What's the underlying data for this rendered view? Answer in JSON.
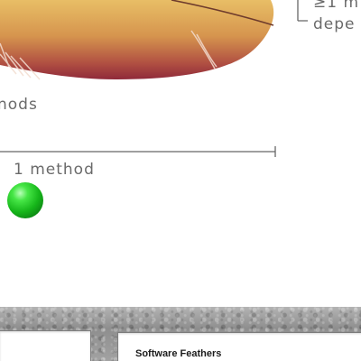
{
  "diagram": {
    "dependency_label_line1": "≥1 m",
    "dependency_label_line2": "depe",
    "methods_partial": "nods",
    "one_method_label": "1 method"
  },
  "panels": {
    "main_title": "Software Feathers"
  },
  "colors": {
    "feather_light": "#e3b45e",
    "feather_dark": "#9c3340",
    "green_ball": "#1ec71e",
    "line_gray": "#666666",
    "stone": "#9a9a9a"
  }
}
